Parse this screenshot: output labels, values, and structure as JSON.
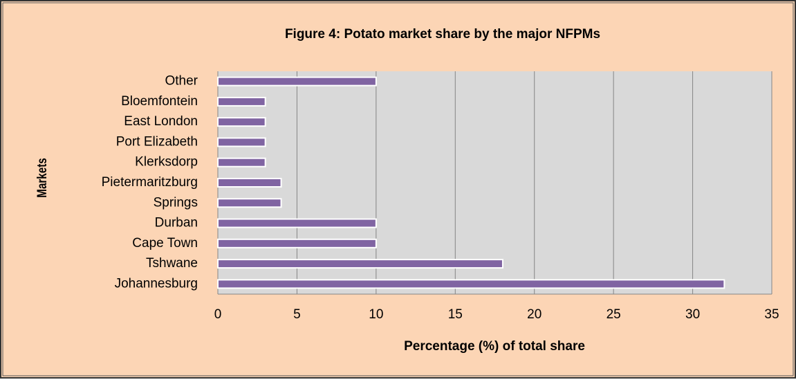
{
  "chart_data": {
    "type": "bar",
    "orientation": "horizontal",
    "title": "Figure 4: Potato market share by the major NFPMs",
    "x_label": "Percentage (%) of total  share",
    "y_label": "Markets",
    "categories": [
      "Johannesburg",
      "Tshwane",
      "Cape Town",
      "Durban",
      "Springs",
      "Pietermaritzburg",
      "Klerksdorp",
      "Port Elizabeth",
      "East London",
      "Bloemfontein",
      "Other"
    ],
    "values": [
      32,
      18,
      10,
      10,
      4,
      4,
      3,
      3,
      3,
      3,
      10
    ],
    "color": "#8064a2",
    "xlim": [
      0,
      35
    ],
    "xticks": [
      0,
      5,
      10,
      15,
      20,
      25,
      30,
      35
    ],
    "grid": true
  }
}
